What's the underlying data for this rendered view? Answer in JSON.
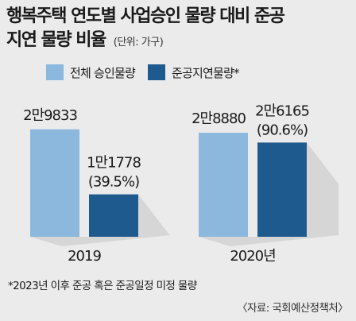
{
  "title_line1": "행복주택 연도별 사업승인 물량 대비 준공",
  "title_line2": "지연 물량 비율",
  "unit": "(단위: 가구)",
  "footnote": "*2023년 이후 준공 혹은 준공일정 미정 물량",
  "source": "〈자료: 국회예산정책처〉",
  "colors": {
    "approved": "#8bb8dc",
    "delayed": "#1f5a8f",
    "background": "#ebebeb"
  },
  "chart_data": {
    "type": "bar",
    "categories": [
      "2019",
      "2020년"
    ],
    "series": [
      {
        "name": "전체 승인물량",
        "values": [
          29833,
          28880
        ],
        "labels": [
          "2만9833",
          "2만8880"
        ]
      },
      {
        "name": "준공지연물량*",
        "values": [
          11778,
          26165
        ],
        "labels": [
          "1만1778",
          "2만6165"
        ],
        "pct_labels": [
          "(39.5%)",
          "(90.6%)"
        ]
      }
    ],
    "ylim": [
      0,
      30000
    ],
    "legend": "top",
    "grid": false
  }
}
